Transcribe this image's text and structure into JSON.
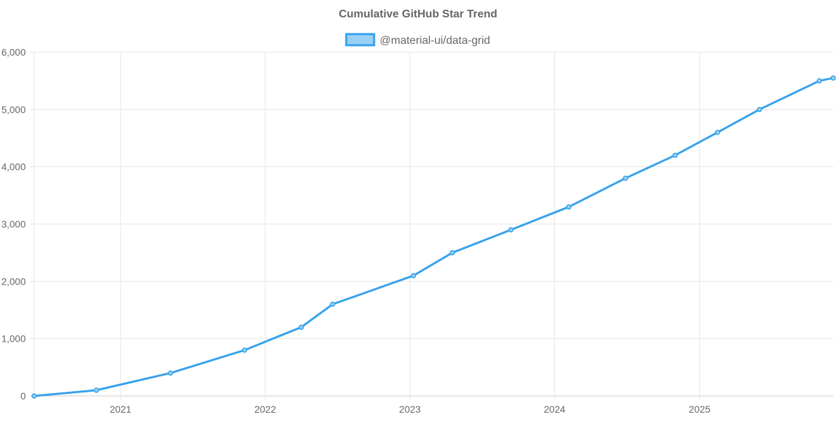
{
  "chart_data": {
    "type": "line",
    "title": "Cumulative GitHub Star Trend",
    "xlabel": "",
    "ylabel": "",
    "legend_position": "top",
    "grid": true,
    "xlim": [
      "2020-05-28",
      "2025-12-04"
    ],
    "ylim": [
      0,
      6000
    ],
    "x_ticks": [
      "2021",
      "2022",
      "2023",
      "2024",
      "2025"
    ],
    "y_ticks": [
      "0",
      "1,000",
      "2,000",
      "3,000",
      "4,000",
      "5,000",
      "6,000"
    ],
    "series": [
      {
        "name": "@material-ui/data-grid",
        "color": "#36a2eb",
        "fill": "#9ad0f5",
        "x": [
          "2020-05-28",
          "2020-11-01",
          "2021-05-07",
          "2021-11-10",
          "2022-04-02",
          "2022-06-20",
          "2023-01-10",
          "2023-04-18",
          "2023-09-13",
          "2024-02-06",
          "2024-06-28",
          "2024-10-31",
          "2025-02-15",
          "2025-06-01",
          "2025-10-30",
          "2025-12-04"
        ],
        "y": [
          0,
          100,
          400,
          800,
          1200,
          1600,
          2100,
          2500,
          2900,
          3300,
          3800,
          4200,
          4600,
          5000,
          5500,
          5550
        ]
      }
    ]
  }
}
